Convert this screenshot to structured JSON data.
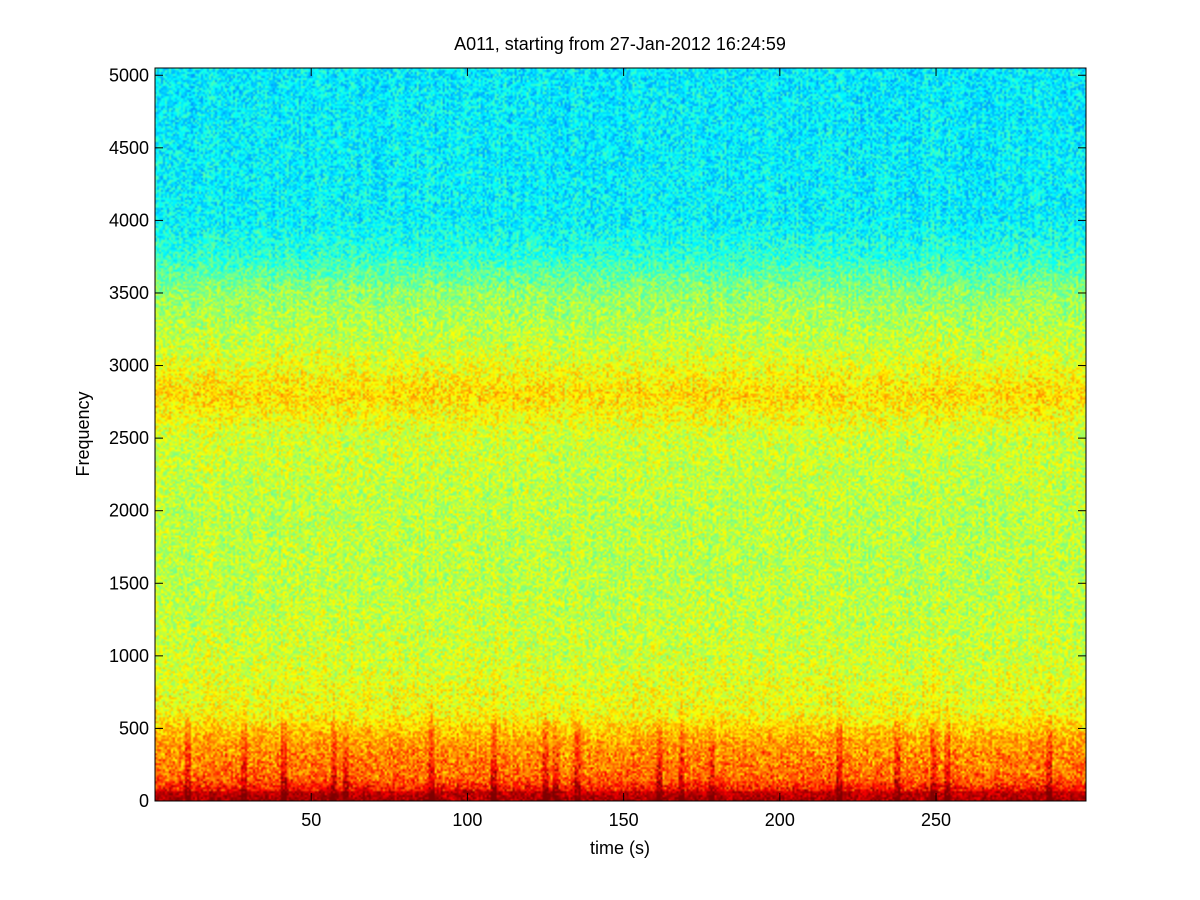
{
  "chart_data": {
    "type": "heatmap",
    "title": "A011, starting from 27-Jan-2012 16:24:59",
    "xlabel": "time (s)",
    "ylabel": "Frequency",
    "xlim": [
      0,
      298
    ],
    "ylim": [
      0,
      5050
    ],
    "xticks": [
      50,
      100,
      150,
      200,
      250
    ],
    "yticks": [
      0,
      500,
      1000,
      1500,
      2000,
      2500,
      3000,
      3500,
      4000,
      4500,
      5000
    ],
    "grid": false,
    "colormap": "jet",
    "colors": {
      "high_band": "#3ef0b4",
      "mid_band": "#e8f23a",
      "low_band": "#f2a010",
      "hot": "#e81808"
    },
    "energy_profile": [
      {
        "freq": 0,
        "level": 0.95
      },
      {
        "freq": 150,
        "level": 0.78
      },
      {
        "freq": 400,
        "level": 0.72
      },
      {
        "freq": 600,
        "level": 0.62
      },
      {
        "freq": 1000,
        "level": 0.58
      },
      {
        "freq": 1500,
        "level": 0.56
      },
      {
        "freq": 2000,
        "level": 0.56
      },
      {
        "freq": 2500,
        "level": 0.58
      },
      {
        "freq": 2800,
        "level": 0.66
      },
      {
        "freq": 3100,
        "level": 0.58
      },
      {
        "freq": 3500,
        "level": 0.52
      },
      {
        "freq": 3750,
        "level": 0.42
      },
      {
        "freq": 4000,
        "level": 0.37
      },
      {
        "freq": 5050,
        "level": 0.36
      }
    ],
    "transients_s": [
      10,
      28,
      41,
      57,
      61,
      88,
      108,
      125,
      128,
      135,
      161,
      168,
      178,
      219,
      237,
      249,
      253,
      286
    ]
  }
}
